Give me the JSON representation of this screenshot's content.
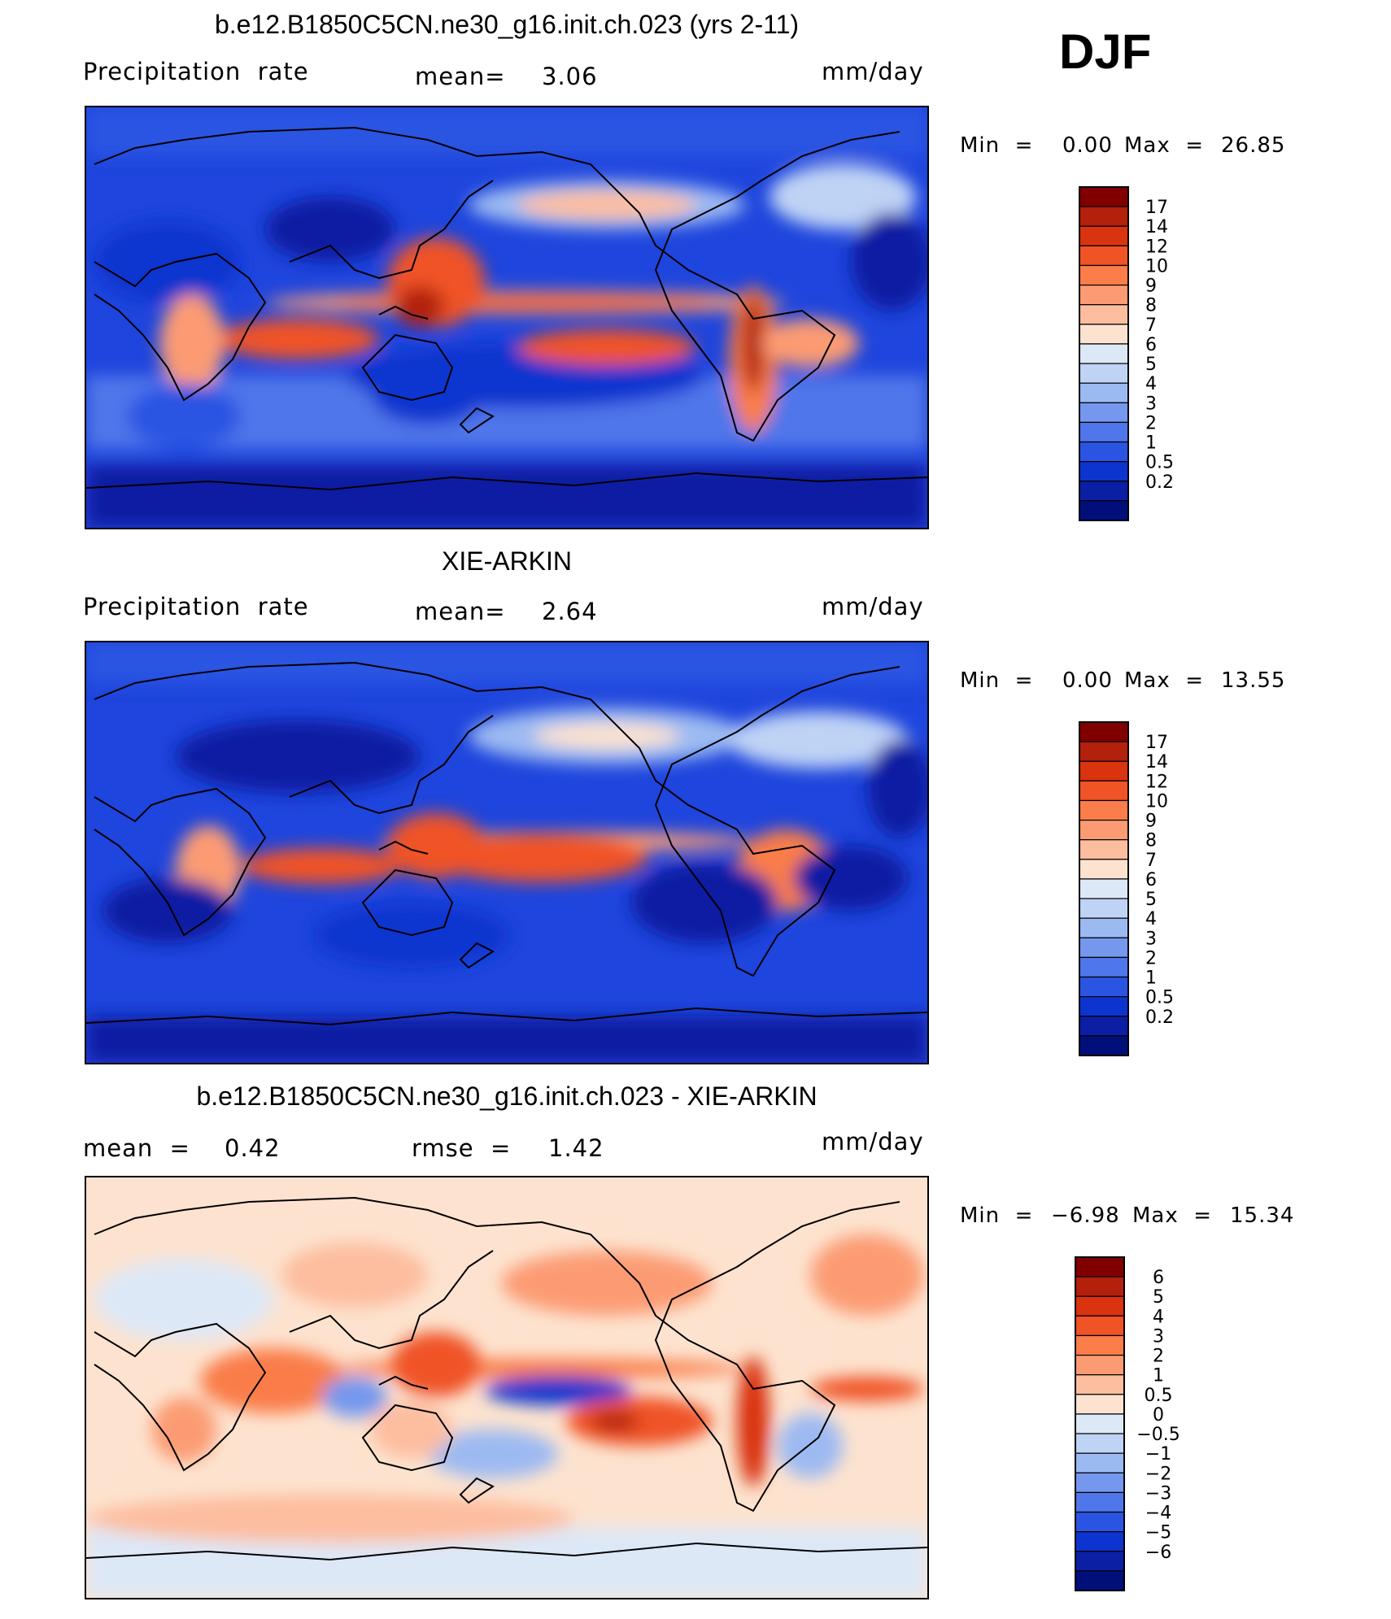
{
  "season": "DJF",
  "panels": [
    {
      "title": "b.e12.B1850C5CN.ne30_g16.init.ch.023 (yrs 2-11)",
      "left_label": "Precipitation  rate",
      "stat1_label": "mean=",
      "stat1_value": "3.06",
      "units": "mm/day",
      "min_label": "Min  =",
      "min_value": "0.00",
      "max_label": "Max  =",
      "max_value": "26.85"
    },
    {
      "title": "XIE-ARKIN",
      "left_label": "Precipitation  rate",
      "stat1_label": "mean=",
      "stat1_value": "2.64",
      "units": "mm/day",
      "min_label": "Min  =",
      "min_value": "0.00",
      "max_label": "Max  =",
      "max_value": "13.55"
    },
    {
      "title": "b.e12.B1850C5CN.ne30_g16.init.ch.023 - XIE-ARKIN",
      "left_label": "mean  =",
      "left_value": "0.42",
      "stat1_label": "rmse  =",
      "stat1_value": "1.42",
      "units": "mm/day",
      "min_label": "Min  =",
      "min_value": "−6.98",
      "max_label": "Max  =",
      "max_value": "15.34"
    }
  ],
  "chart_data": [
    {
      "type": "heatmap",
      "title": "b.e12.B1850C5CN.ne30_g16.init.ch.023 (yrs 2-11)",
      "variable": "Precipitation rate",
      "units": "mm/day",
      "mean": 3.06,
      "min": 0.0,
      "max": 26.85,
      "colorbar_levels": [
        "17",
        "14",
        "12",
        "10",
        "9",
        "8",
        "7",
        "6",
        "5",
        "4",
        "3",
        "2",
        "1",
        "0.5",
        "0.2"
      ],
      "colorbar_colors": [
        "#800000",
        "#b3200c",
        "#d9330f",
        "#f05326",
        "#fa7d4a",
        "#fc9b73",
        "#fdbd9f",
        "#fde3cf",
        "#dde8f7",
        "#bfd3f5",
        "#9cbaf2",
        "#7598ee",
        "#4f76ea",
        "#2a55e3",
        "#0d34cf",
        "#0a1fa3",
        "#000f7a"
      ]
    },
    {
      "type": "heatmap",
      "title": "XIE-ARKIN",
      "variable": "Precipitation rate",
      "units": "mm/day",
      "mean": 2.64,
      "min": 0.0,
      "max": 13.55,
      "colorbar_levels": [
        "17",
        "14",
        "12",
        "10",
        "9",
        "8",
        "7",
        "6",
        "5",
        "4",
        "3",
        "2",
        "1",
        "0.5",
        "0.2"
      ],
      "colorbar_colors": [
        "#800000",
        "#b3200c",
        "#d9330f",
        "#f05326",
        "#fa7d4a",
        "#fc9b73",
        "#fdbd9f",
        "#fde3cf",
        "#dde8f7",
        "#bfd3f5",
        "#9cbaf2",
        "#7598ee",
        "#4f76ea",
        "#2a55e3",
        "#0d34cf",
        "#0a1fa3",
        "#000f7a"
      ]
    },
    {
      "type": "heatmap",
      "title": "b.e12.B1850C5CN.ne30_g16.init.ch.023 - XIE-ARKIN",
      "units": "mm/day",
      "mean": 0.42,
      "rmse": 1.42,
      "min": -6.98,
      "max": 15.34,
      "colorbar_levels": [
        "6",
        "5",
        "4",
        "3",
        "2",
        "1",
        "0.5",
        "0",
        "−0.5",
        "−1",
        "−2",
        "−3",
        "−4",
        "−5",
        "−6"
      ],
      "colorbar_colors": [
        "#800000",
        "#b3200c",
        "#d9330f",
        "#f05326",
        "#fa7d4a",
        "#fc9b73",
        "#fdbd9f",
        "#fde3cf",
        "#dde8f7",
        "#bfd3f5",
        "#9cbaf2",
        "#7598ee",
        "#4f76ea",
        "#2a55e3",
        "#0d34cf",
        "#0a1fa3",
        "#000f7a"
      ]
    }
  ]
}
